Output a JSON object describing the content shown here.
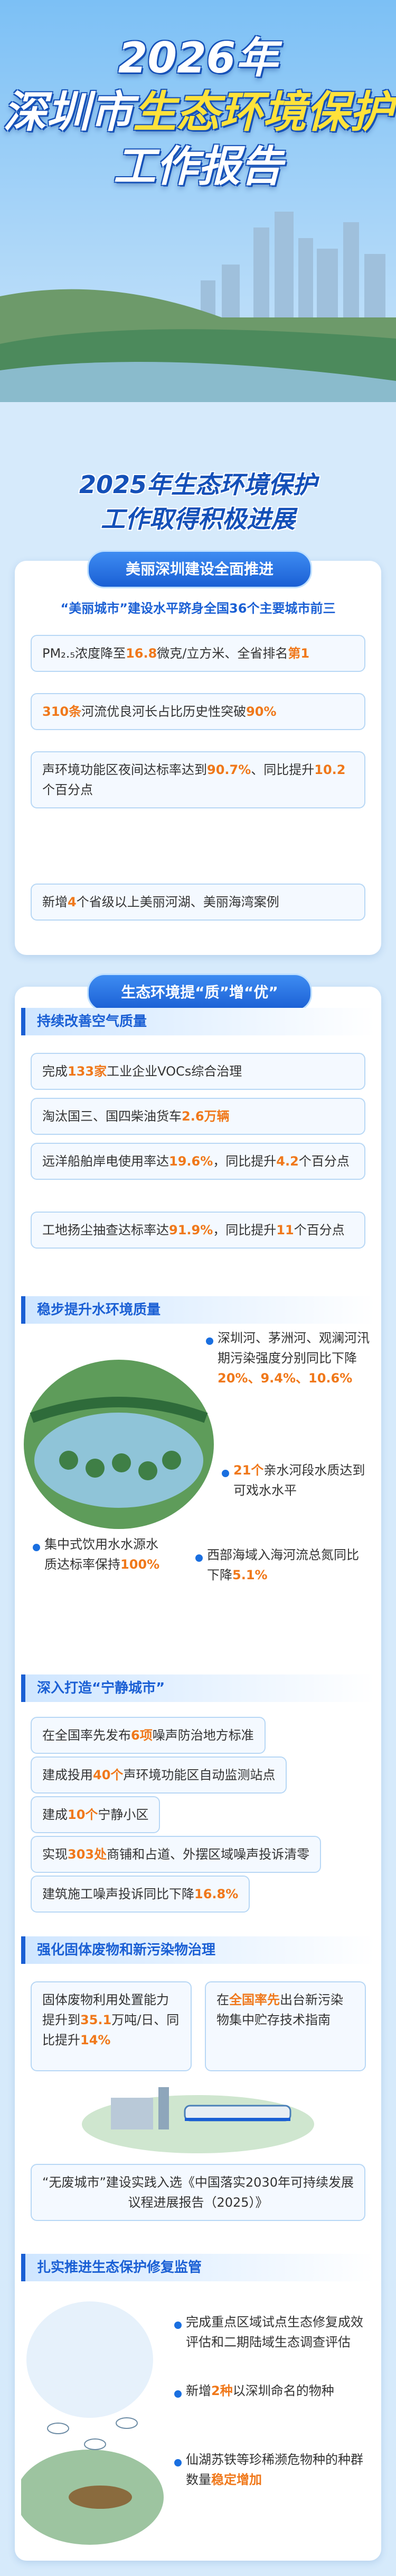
{
  "header": {
    "year": "2026年",
    "title_a": "深圳市",
    "title_b": "生态环境保护",
    "title_c": "工作报告"
  },
  "subtitle": [
    "2025年生态环境保护",
    "工作取得积极进展"
  ],
  "sections": [
    {
      "tab": "美丽深圳建设全面推进",
      "lead": "“美丽城市”建设水平跻身全国36个主要城市前三",
      "items": [
        [
          "PM₂.₅浓度降至",
          "16.8",
          "微克/立方米、全省排名",
          "第1"
        ],
        [
          "",
          "310条",
          "河流优良河长占比历史性突破",
          "90%"
        ],
        [
          "声环境功能区夜间达标率达到",
          "90.7%",
          "、同比提升",
          "10.2",
          "个百分点"
        ],
        [
          "新增",
          "4",
          "个省级以上美丽河湖、美丽海湾案例"
        ]
      ]
    },
    {
      "tab": "生态环境提“质”增“优”",
      "groups": [
        {
          "heading": "持续改善空气质量",
          "items": [
            [
              "完成",
              "133家",
              "工业企业VOCs综合治理"
            ],
            [
              "淘汰国三、国四柴油货车",
              "2.6万辆"
            ],
            [
              "远洋船舶岸电使用率达",
              "19.6%",
              "，同比提升",
              "4.2",
              "个百分点"
            ],
            [
              "工地扬尘抽查达标率达",
              "91.9%",
              "，同比提升",
              "11",
              "个百分点"
            ]
          ]
        },
        {
          "heading": "稳步提升水环境质量",
          "items": [
            [
              "深圳河、茅洲河、观澜河汛期污染强度分别同比下降",
              "20%、9.4%、10.6%"
            ],
            [
              "",
              "21个",
              "亲水河段水质达到可戏水水平"
            ],
            [
              "集中式饮用水水源水质达标率保持",
              "100%"
            ],
            [
              "西部海域入海河流总氮同比下降",
              "5.1%"
            ]
          ]
        },
        {
          "heading": "深入打造“宁静城市”",
          "items": [
            [
              "在全国率先发布",
              "6项",
              "噪声防治地方标准"
            ],
            [
              "建成投用",
              "40个",
              "声环境功能区自动监测站点"
            ],
            [
              "建成",
              "10个",
              "宁静小区"
            ],
            [
              "实现",
              "303处",
              "商铺和占道、外摆区域噪声投诉清零"
            ],
            [
              "建筑施工噪声投诉同比下降",
              "16.8%"
            ]
          ]
        },
        {
          "heading": "强化固体废物和新污染物治理",
          "items": [
            [
              "固体废物利用处置能力提升到",
              "35.1",
              "万吨/日、同比提升",
              "14%"
            ],
            [
              "在",
              "全国率先",
              "出台新污染物集中贮存技术指南"
            ],
            [
              "“无废城市”建设实践入选《中国落实2030年可持续发展议程进展报告（2025）》"
            ]
          ]
        },
        {
          "heading": "扎实推进生态保护修复监管",
          "items": [
            [
              "完成重点区域试点生态修复成效评估和二期陆域生态调查评估"
            ],
            [
              "新增",
              "2种",
              "以深圳命名的物种"
            ],
            [
              "仙湖苏铁等珍稀濒危物种的种群数量",
              "稳定增加"
            ]
          ]
        }
      ]
    }
  ]
}
